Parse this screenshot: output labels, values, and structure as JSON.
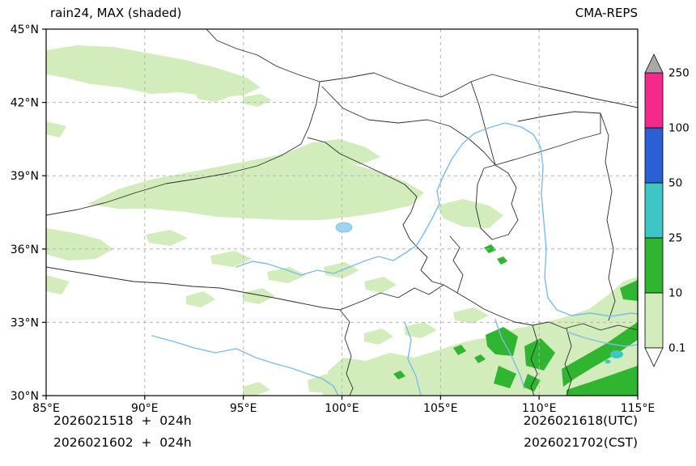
{
  "header": {
    "title": "rain24, MAX (shaded)",
    "model": "CMA-REPS"
  },
  "footer": {
    "init_line1": "2026021518  +  024h",
    "init_line2": "2026021602  +  024h",
    "valid_utc": "2026021618(UTC)",
    "valid_cst": "2026021702(CST)"
  },
  "chart_data": {
    "type": "heatmap",
    "title": "rain24, MAX (shaded)",
    "model": "CMA-REPS",
    "variable": "24-h accumulated precipitation, ensemble maximum (shaded)",
    "xlim": [
      85,
      115
    ],
    "ylim": [
      30,
      45
    ],
    "xticks": [
      {
        "v": 85,
        "label": "85°E"
      },
      {
        "v": 90,
        "label": "90°E"
      },
      {
        "v": 95,
        "label": "95°E"
      },
      {
        "v": 100,
        "label": "100°E"
      },
      {
        "v": 105,
        "label": "105°E"
      },
      {
        "v": 110,
        "label": "110°E"
      },
      {
        "v": 115,
        "label": "115°E"
      }
    ],
    "yticks": [
      {
        "v": 30,
        "label": "30°N"
      },
      {
        "v": 33,
        "label": "33°N"
      },
      {
        "v": 36,
        "label": "36°N"
      },
      {
        "v": 39,
        "label": "39°N"
      },
      {
        "v": 42,
        "label": "42°N"
      },
      {
        "v": 45,
        "label": "45°N"
      }
    ],
    "grid": "dashed",
    "colorbar": {
      "orientation": "vertical-right",
      "levels": [
        0.1,
        10,
        25,
        50,
        100,
        250
      ],
      "labels": [
        "0.1",
        "10",
        "25",
        "50",
        "100",
        "250"
      ],
      "colors": [
        "#d2edbb",
        "#2fb52f",
        "#3ec6c6",
        "#2b5fd4",
        "#f5288c"
      ],
      "under_color": "#ffffff",
      "over_color": "#a9a9a9"
    },
    "map_colors": {
      "boundary": "#2b2b2b",
      "river": "#7cbbe8",
      "lake": "#9ed4ee",
      "grid": "#b5b5b5",
      "frame": "#000000"
    },
    "shaded_regions": [
      {
        "value_range": "0.1-10",
        "desc": "broad light shading over northern Xinjiang (85-98E, 42-44.5N), a wide belt across the Hexi corridor / Qaidam basin (88-104E, 37-40.5N), scattered patches near the west edge (85-87E, 34-37N), scattered small patches 30-36N in the interior, and widespread shading over the southeast quadrant (101-115E, 30-34.5N)"
      },
      {
        "value_range": "10-25",
        "desc": "clusters over SE Sichuan / Chongqing (109-112E, 30.5-33N), a SW-NE band near 112-115E 30-33.5N, patches along the right edge near 114-115E 33-34N, and a strip along the bottom-right edge"
      },
      {
        "value_range": "25-50",
        "desc": "small spot near 113.9E, 31.4N"
      }
    ]
  }
}
